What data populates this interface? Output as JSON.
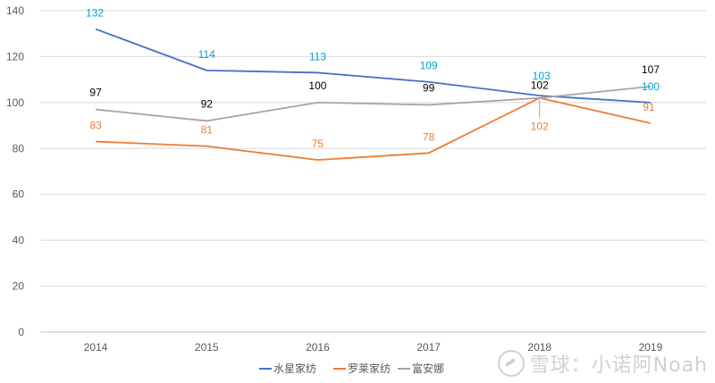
{
  "chart_data": {
    "type": "line",
    "title": "",
    "xlabel": "",
    "ylabel": "",
    "categories": [
      "2014",
      "2015",
      "2016",
      "2017",
      "2018",
      "2019"
    ],
    "ylim": [
      0,
      140
    ],
    "yticks": [
      0,
      20,
      40,
      60,
      80,
      100,
      120,
      140
    ],
    "grid": true,
    "legend_position": "bottom",
    "series": [
      {
        "name": "水星家纺",
        "color": "#4472C4",
        "label_color": "#00A0DC",
        "values": [
          132,
          114,
          113,
          109,
          103,
          100
        ]
      },
      {
        "name": "罗莱家纺",
        "color": "#ED7D31",
        "label_color": "#ED7D31",
        "values": [
          83,
          81,
          75,
          78,
          102,
          91
        ]
      },
      {
        "name": "富安娜",
        "color": "#A5A5A5",
        "label_color": "#000000",
        "values": [
          97,
          92,
          100,
          99,
          102,
          107
        ]
      }
    ]
  },
  "watermark": {
    "text": "雪球：小诺阿Noah"
  }
}
